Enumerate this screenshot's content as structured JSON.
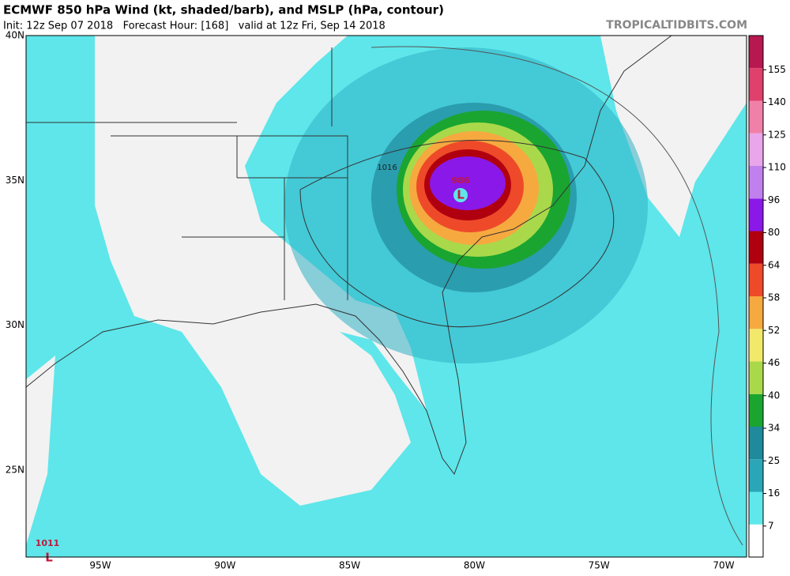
{
  "header": {
    "title": "ECMWF 850 hPa Wind (kt, shaded/barb), and MSLP (hPa, contour)",
    "subtitle": "Init: 12z Sep 07 2018   Forecast Hour: [168]   valid at 12z Fri, Sep 14 2018",
    "site": "TROPICALTIDBITS.COM"
  },
  "map": {
    "lat_labels": [
      "40N",
      "35N",
      "30N",
      "25N"
    ],
    "lon_labels": [
      "95W",
      "90W",
      "85W",
      "80W",
      "75W",
      "70W"
    ],
    "annotations": {
      "storm_pressure": "986",
      "storm_low": "L",
      "isobar": "1016",
      "west_pressure": "1011",
      "west_low": "L"
    }
  },
  "colorbar": {
    "ticks": [
      7,
      16,
      25,
      34,
      40,
      46,
      52,
      58,
      64,
      80,
      96,
      110,
      125,
      140,
      155
    ],
    "colors": [
      "#ffffff",
      "#5ee8ec",
      "#2aa6b8",
      "#1f8a9c",
      "#1aa531",
      "#a9d94a",
      "#f2e86a",
      "#f6a93f",
      "#ee4a2a",
      "#b0000f",
      "#8a18e8",
      "#c080ee",
      "#eaa6ea",
      "#f080a8",
      "#e0406c",
      "#b81850"
    ]
  }
}
